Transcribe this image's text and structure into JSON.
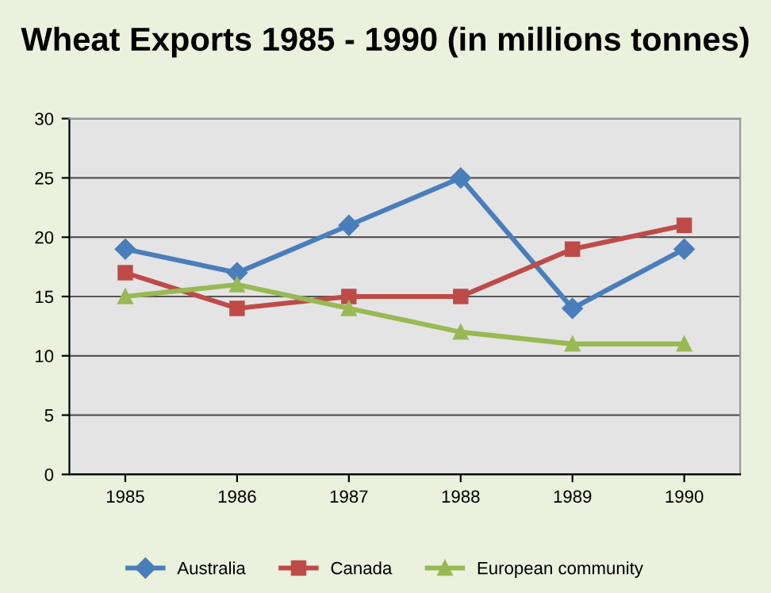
{
  "chart_data": {
    "type": "line",
    "title": "Wheat Exports 1985 - 1990 (in millions tonnes)",
    "categories": [
      "1985",
      "1986",
      "1987",
      "1988",
      "1989",
      "1990"
    ],
    "series": [
      {
        "name": "Australia",
        "color": "#4a7ebb",
        "marker": "diamond",
        "values": [
          19,
          17,
          21,
          25,
          14,
          19
        ]
      },
      {
        "name": "Canada",
        "color": "#be4b48",
        "marker": "square",
        "values": [
          17,
          14,
          15,
          15,
          19,
          21
        ]
      },
      {
        "name": "European community",
        "color": "#98b954",
        "marker": "triangle",
        "values": [
          15,
          16,
          14,
          12,
          11,
          11
        ]
      }
    ],
    "ylim": [
      0,
      30
    ],
    "yticks": [
      0,
      5,
      10,
      15,
      20,
      25,
      30
    ],
    "grid": "y",
    "legend": "bottom",
    "line_style": "solid"
  }
}
